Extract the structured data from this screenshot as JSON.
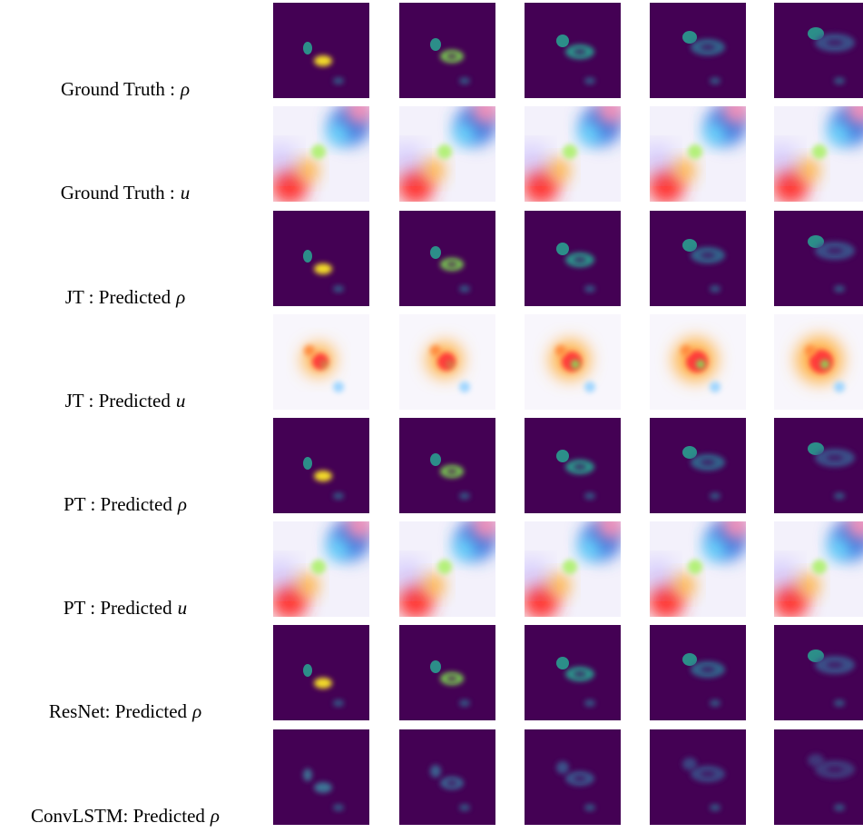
{
  "rows": [
    {
      "label": "Ground Truth :",
      "symbol": "ρ"
    },
    {
      "label": "Ground Truth :",
      "symbol": "u"
    },
    {
      "label": "JT : Predicted",
      "symbol": "ρ"
    },
    {
      "label": "JT : Predicted",
      "symbol": "u"
    },
    {
      "label": "PT : Predicted",
      "symbol": "ρ"
    },
    {
      "label": "PT : Predicted",
      "symbol": "u"
    },
    {
      "label": "ResNet: Predicted",
      "symbol": "ρ"
    },
    {
      "label": "ConvLSTM: Predicted",
      "symbol": "ρ"
    }
  ]
}
